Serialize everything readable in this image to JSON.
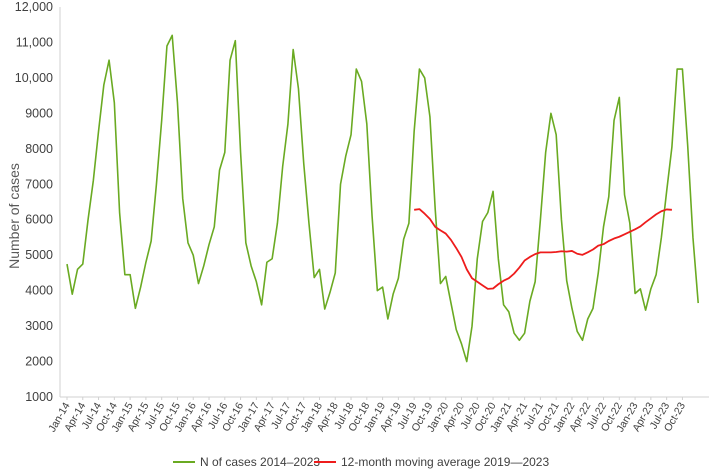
{
  "chart_data": {
    "type": "line",
    "title": "",
    "xlabel": "",
    "ylabel": "Number of cases",
    "ylim": [
      1000,
      12000
    ],
    "yticks": [
      1000,
      2000,
      3000,
      4000,
      5000,
      6000,
      7000,
      8000,
      9000,
      10000,
      11000,
      12000
    ],
    "ytick_labels": [
      "1000",
      "2000",
      "3000",
      "4000",
      "5000",
      "6000",
      "7000",
      "8000",
      "9000",
      "10,000",
      "11,000",
      "12,000"
    ],
    "xtick_labels": [
      "Jan-14",
      "Apr-14",
      "Jul-14",
      "Oct-14",
      "Jan-15",
      "Apr-15",
      "Jul-15",
      "Oct-15",
      "Jan-16",
      "Apr-16",
      "Jul-16",
      "Oct-16",
      "Jan-17",
      "Apr-17",
      "Jul-17",
      "Oct-17",
      "Jan-18",
      "Apr-18",
      "Jul-18",
      "Oct-18",
      "Jan-19",
      "Apr-19",
      "Jul-19",
      "Oct-19",
      "Jan-20",
      "Apr-20",
      "Jul-20",
      "Oct-20",
      "Jan-21",
      "Apr-21",
      "Jul-21",
      "Oct-21",
      "Jan-22",
      "Apr-22",
      "Jul-22",
      "Oct-22",
      "Jan-23",
      "Apr-23",
      "Jul-23",
      "Oct-23"
    ],
    "grid": false,
    "legend_position": "bottom",
    "series": [
      {
        "name": "N of cases 2014–2023",
        "color": "#6aaa22",
        "start_month": "Jan-14",
        "values": [
          4750,
          3900,
          4600,
          4750,
          6000,
          7100,
          8500,
          9800,
          10500,
          9300,
          6200,
          4450,
          4450,
          3500,
          4100,
          4800,
          5400,
          7000,
          8800,
          10900,
          11200,
          9300,
          6600,
          5350,
          5000,
          4200,
          4700,
          5300,
          5800,
          7400,
          7900,
          10500,
          11050,
          7900,
          5350,
          4700,
          4250,
          3600,
          4800,
          4900,
          5900,
          7500,
          8700,
          10800,
          9700,
          7600,
          5900,
          4370,
          4600,
          3480,
          3950,
          4500,
          7000,
          7800,
          8400,
          10250,
          9900,
          8700,
          6100,
          4000,
          4100,
          3200,
          3900,
          4350,
          5450,
          5900,
          8500,
          10250,
          10000,
          8900,
          6300,
          4200,
          4400,
          3650,
          2900,
          2500,
          2000,
          3000,
          4900,
          5950,
          6200,
          6800,
          4900,
          3600,
          3400,
          2800,
          2600,
          2800,
          3700,
          4250,
          6000,
          7900,
          9000,
          8400,
          6000,
          4280,
          3500,
          2850,
          2600,
          3200,
          3500,
          4500,
          5800,
          6650,
          8800,
          9450,
          6700,
          5900,
          3920,
          4050,
          3450,
          4050,
          4450,
          5500,
          6800,
          8050,
          10250,
          10250,
          8100,
          5500,
          3650
        ]
      },
      {
        "name": "12-month moving average 2019—2023",
        "color": "#ee1c1c",
        "start_month": "Jul-19",
        "values": [
          6280,
          6300,
          6170,
          6020,
          5800,
          5700,
          5610,
          5430,
          5200,
          4950,
          4600,
          4350,
          4250,
          4150,
          4050,
          4060,
          4180,
          4280,
          4350,
          4480,
          4650,
          4850,
          4950,
          5030,
          5080,
          5080,
          5080,
          5090,
          5110,
          5100,
          5120,
          5040,
          5010,
          5080,
          5160,
          5270,
          5310,
          5400,
          5470,
          5520,
          5590,
          5660,
          5730,
          5810,
          5930,
          6040,
          6150,
          6240,
          6290,
          6280
        ]
      }
    ]
  }
}
